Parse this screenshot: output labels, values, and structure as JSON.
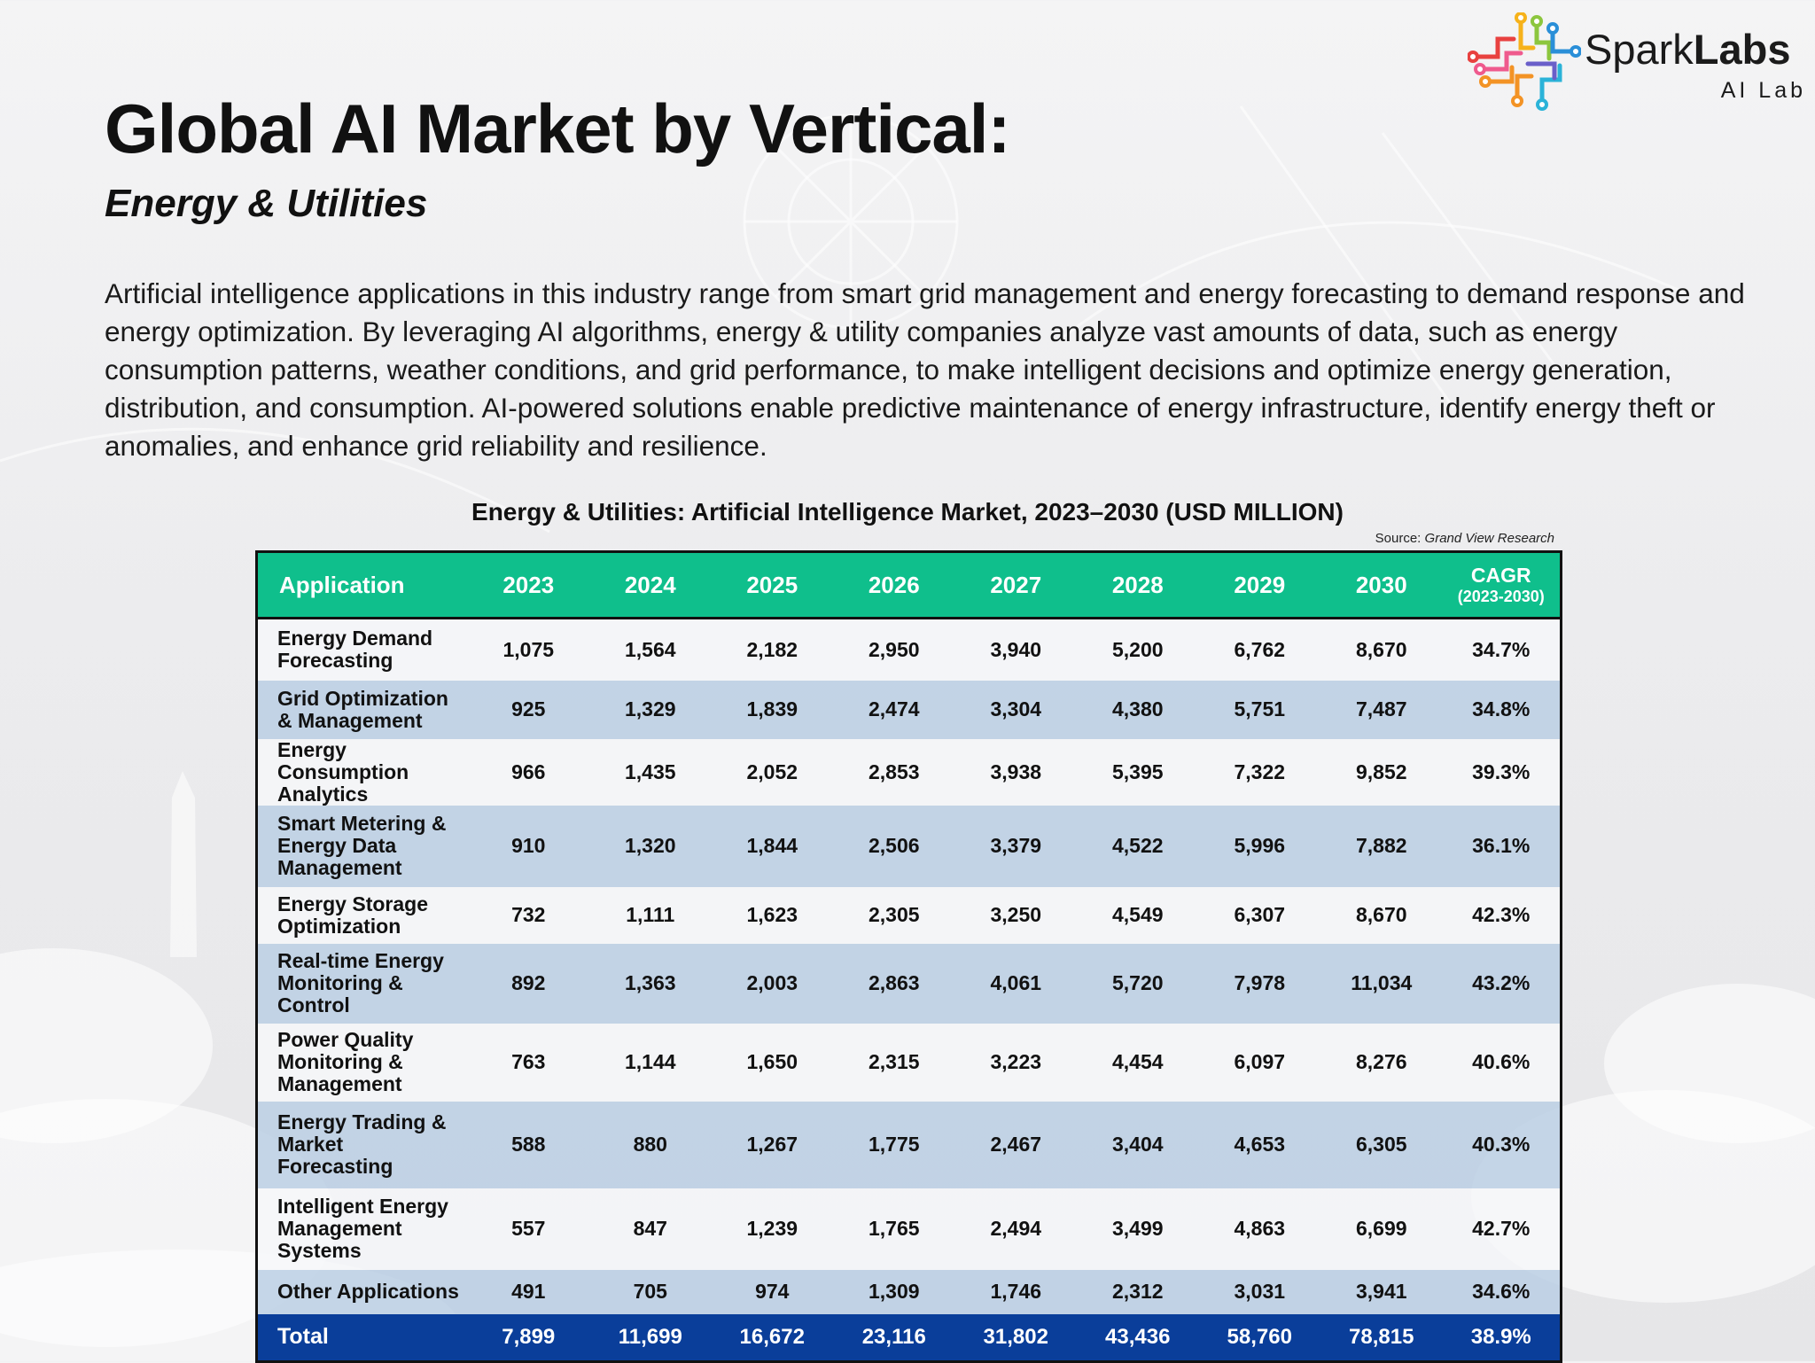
{
  "brand": {
    "name_light": "Spark",
    "name_bold": "Labs",
    "sub": "AI Lab"
  },
  "heading": {
    "title": "Global AI Market by Vertical:",
    "subtitle": "Energy & Utilities"
  },
  "description": "Artificial intelligence applications in this industry range from smart grid management and energy forecasting to demand response and energy optimization. By leveraging AI algorithms, energy & utility companies analyze vast amounts of data, such as energy consumption patterns, weather conditions, and grid performance, to make intelligent decisions and optimize energy generation, distribution, and consumption. AI-powered solutions enable predictive maintenance of energy infrastructure, identify energy theft or anomalies, and enhance grid reliability and resilience.",
  "table": {
    "title": "Energy & Utilities: Artificial Intelligence Market, 2023–2030 (USD MILLION)",
    "source_label": "Source: ",
    "source_name": "Grand View Research",
    "header": {
      "application": "Application",
      "years": [
        "2023",
        "2024",
        "2025",
        "2026",
        "2027",
        "2028",
        "2029",
        "2030"
      ],
      "cagr": "CAGR",
      "cagr_period": "(2023-2030)"
    },
    "rows": [
      {
        "application": "Energy Demand Forecasting",
        "values": [
          "1,075",
          "1,564",
          "2,182",
          "2,950",
          "3,940",
          "5,200",
          "6,762",
          "8,670"
        ],
        "cagr": "34.7%"
      },
      {
        "application": "Grid Optimization & Management",
        "values": [
          "925",
          "1,329",
          "1,839",
          "2,474",
          "3,304",
          "4,380",
          "5,751",
          "7,487"
        ],
        "cagr": "34.8%"
      },
      {
        "application": "Energy Consumption Analytics",
        "values": [
          "966",
          "1,435",
          "2,052",
          "2,853",
          "3,938",
          "5,395",
          "7,322",
          "9,852"
        ],
        "cagr": "39.3%"
      },
      {
        "application": "Smart Metering & Energy Data Management",
        "values": [
          "910",
          "1,320",
          "1,844",
          "2,506",
          "3,379",
          "4,522",
          "5,996",
          "7,882"
        ],
        "cagr": "36.1%"
      },
      {
        "application": "Energy Storage Optimization",
        "values": [
          "732",
          "1,111",
          "1,623",
          "2,305",
          "3,250",
          "4,549",
          "6,307",
          "8,670"
        ],
        "cagr": "42.3%"
      },
      {
        "application": "Real-time Energy Monitoring & Control",
        "values": [
          "892",
          "1,363",
          "2,003",
          "2,863",
          "4,061",
          "5,720",
          "7,978",
          "11,034"
        ],
        "cagr": "43.2%"
      },
      {
        "application": "Power Quality Monitoring & Management",
        "values": [
          "763",
          "1,144",
          "1,650",
          "2,315",
          "3,223",
          "4,454",
          "6,097",
          "8,276"
        ],
        "cagr": "40.6%"
      },
      {
        "application": "Energy Trading & Market Forecasting",
        "values": [
          "588",
          "880",
          "1,267",
          "1,775",
          "2,467",
          "3,404",
          "4,653",
          "6,305"
        ],
        "cagr": "40.3%"
      },
      {
        "application": "Intelligent Energy Management Systems",
        "values": [
          "557",
          "847",
          "1,239",
          "1,765",
          "2,494",
          "3,499",
          "4,863",
          "6,699"
        ],
        "cagr": "42.7%"
      },
      {
        "application": "Other Applications",
        "values": [
          "491",
          "705",
          "974",
          "1,309",
          "1,746",
          "2,312",
          "3,031",
          "3,941"
        ],
        "cagr": "34.6%"
      }
    ],
    "total": {
      "application": "Total",
      "values": [
        "7,899",
        "11,699",
        "16,672",
        "23,116",
        "31,802",
        "43,436",
        "58,760",
        "78,815"
      ],
      "cagr": "38.9%"
    }
  },
  "colors": {
    "header_bg": "#0fbf8c",
    "total_bg": "#0a3e9a",
    "row_light": "#f6f7f9",
    "row_blue": "#bacee4"
  }
}
